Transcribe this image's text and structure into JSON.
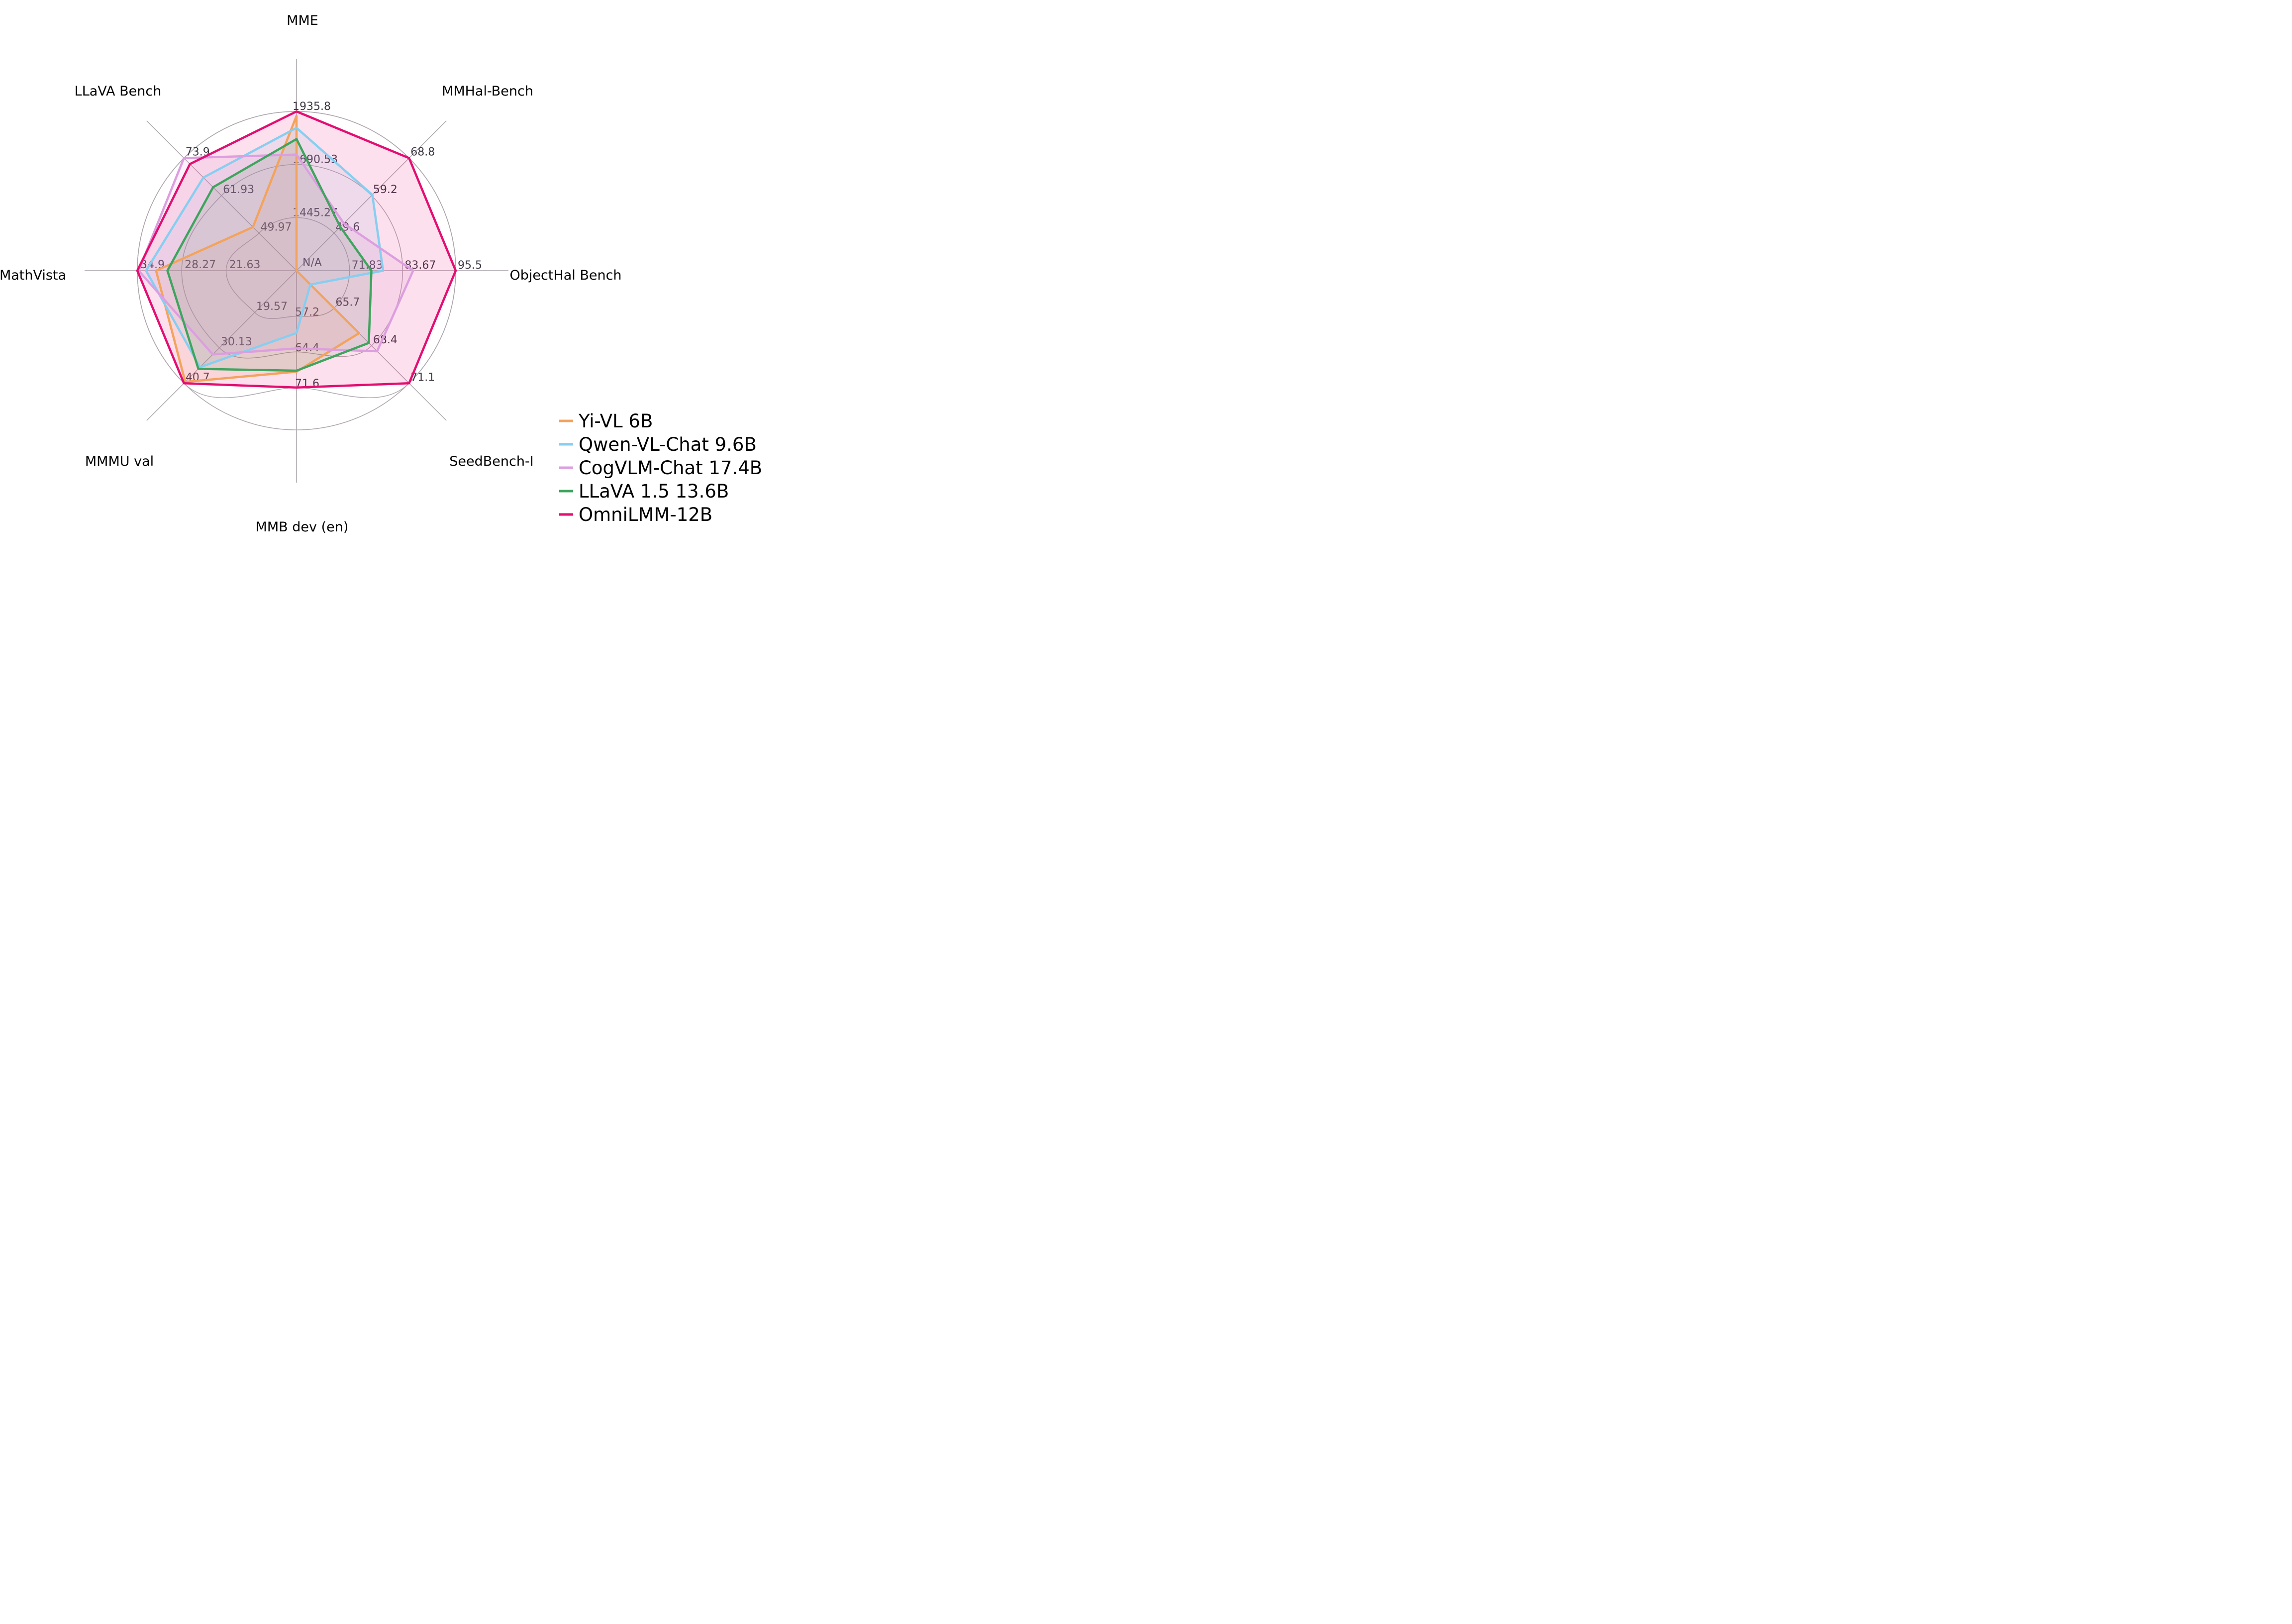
{
  "chart_data": {
    "type": "radar",
    "title": "",
    "center_label": "N/A",
    "legend_position": "lower right",
    "grid": "curved rings at tick values plus outer rim circle",
    "axes": [
      {
        "title": "MME",
        "min": 1200.0,
        "max": 1935.8,
        "ticks": [
          1445.27,
          1690.53,
          1935.8
        ],
        "tick_labels": [
          "1445.27",
          "1690.53",
          "1935.8"
        ]
      },
      {
        "title": "MMHal-Bench",
        "min": 40.0,
        "max": 68.8,
        "ticks": [
          49.6,
          59.2,
          68.8
        ],
        "tick_labels": [
          "49.6",
          "59.2",
          "68.8"
        ]
      },
      {
        "title": "ObjectHal Bench",
        "min": 60.0,
        "max": 95.5,
        "ticks": [
          71.83,
          83.67,
          95.5
        ],
        "tick_labels": [
          "71.83",
          "83.67",
          "95.5"
        ]
      },
      {
        "title": "SeedBench-I",
        "min": 63.0,
        "max": 71.1,
        "ticks": [
          65.7,
          68.4,
          71.1
        ],
        "tick_labels": [
          "65.7",
          "68.4",
          "71.1"
        ]
      },
      {
        "title": "MMB dev (en)",
        "min": 48.0,
        "max": 80.15,
        "ticks": [
          57.2,
          64.4,
          71.6
        ],
        "tick_labels": [
          "57.2",
          "64.4",
          "71.6"
        ]
      },
      {
        "title": "MMMU val",
        "min": 7.1,
        "max": 40.7,
        "ticks": [
          19.57,
          30.13,
          40.7
        ],
        "tick_labels": [
          "19.57",
          "30.13",
          "40.7"
        ]
      },
      {
        "title": "MathVista",
        "min": 11.11,
        "max": 34.9,
        "ticks": [
          21.63,
          28.27,
          34.9
        ],
        "tick_labels": [
          "21.63",
          "28.27",
          "34.9"
        ]
      },
      {
        "title": "LLaVA Bench",
        "min": 38.0,
        "max": 73.9,
        "ticks": [
          49.97,
          61.93,
          73.9
        ],
        "tick_labels": [
          "49.97",
          "61.93",
          "73.9"
        ]
      }
    ],
    "series": [
      {
        "name": "Yi-VL 6B",
        "color": "#F3A35C",
        "values": [
          1915.1,
          null,
          null,
          67.5,
          68.4,
          40.3,
          32.1,
          51.9
        ]
      },
      {
        "name": "Qwen-VL-Chat 9.6B",
        "color": "#87CEF0",
        "values": [
          1860.0,
          59.4,
          79.3,
          64.0,
          60.6,
          35.9,
          33.6,
          67.7
        ]
      },
      {
        "name": "CogVLM-Chat 17.4B",
        "color": "#DD9EE0",
        "values": [
          1736.6,
          52.1,
          86.0,
          68.8,
          63.7,
          32.1,
          34.7,
          73.9
        ]
      },
      {
        "name": "LLaVA 1.5 13.6B",
        "color": "#3FA45E",
        "values": [
          1808.4,
          51.2,
          76.7,
          68.2,
          68.2,
          36.4,
          30.4,
          64.6
        ]
      },
      {
        "name": "OmniLMM-12B",
        "color": "#E40D72",
        "values": [
          1935.8,
          68.8,
          95.5,
          71.1,
          71.6,
          40.7,
          34.9,
          72.0
        ]
      }
    ],
    "style": {
      "grid_color": "#ADA7AD",
      "spoke_color": "#A9A4A9",
      "tick_text_color": "#3F3845",
      "title_color": "#000000",
      "legend_text_color": "#000000",
      "fill_opacity": 0.13,
      "line_width": 4.5
    }
  }
}
